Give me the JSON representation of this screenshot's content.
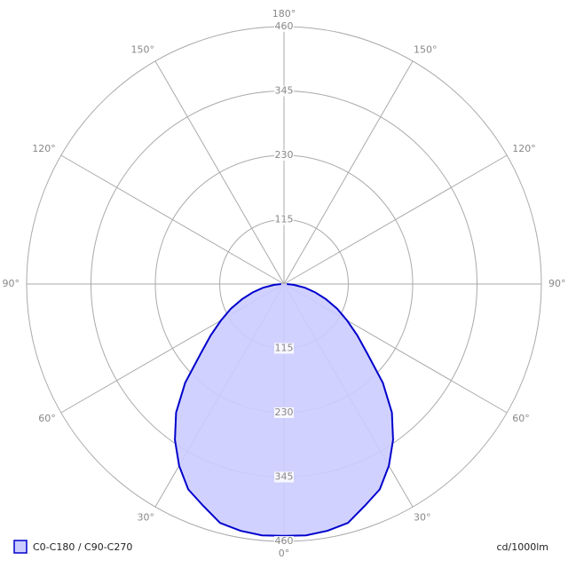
{
  "chart_data": {
    "type": "polar",
    "unit_label": "cd/1000lm",
    "series": [
      {
        "name": "C0-C180 / C90-C270",
        "color": "#0000cc",
        "fill": "#ccccff",
        "x": [
          -90,
          -85,
          -80,
          -75,
          -70,
          -65,
          -60,
          -55,
          -50,
          -45,
          -40,
          -35,
          -30,
          -25,
          -20,
          -15,
          -10,
          -5,
          0,
          5,
          10,
          15,
          20,
          25,
          30,
          35,
          40,
          45,
          50,
          55,
          60,
          65,
          70,
          75,
          80,
          85,
          90
        ],
        "values": [
          5,
          18,
          38,
          58,
          80,
          105,
          130,
          160,
          195,
          250,
          300,
          340,
          375,
          405,
          422,
          442,
          448,
          451,
          450,
          451,
          448,
          442,
          422,
          405,
          375,
          340,
          300,
          250,
          195,
          160,
          130,
          105,
          80,
          58,
          38,
          18,
          5
        ]
      }
    ],
    "rlim": [
      0,
      460
    ],
    "rticks": [
      115,
      230,
      345,
      460
    ],
    "angle_ticks": [
      {
        "value": -150,
        "label": "150°"
      },
      {
        "value": -120,
        "label": "120°"
      },
      {
        "value": -90,
        "label": "90°"
      },
      {
        "value": -60,
        "label": "60°"
      },
      {
        "value": -30,
        "label": "30°"
      },
      {
        "value": 0,
        "label": "0°"
      },
      {
        "value": 30,
        "label": "30°"
      },
      {
        "value": 60,
        "label": "60°"
      },
      {
        "value": 90,
        "label": "90°"
      },
      {
        "value": 120,
        "label": "120°"
      },
      {
        "value": 150,
        "label": "150°"
      },
      {
        "value": 180,
        "label": "180°"
      }
    ],
    "grid": true
  }
}
